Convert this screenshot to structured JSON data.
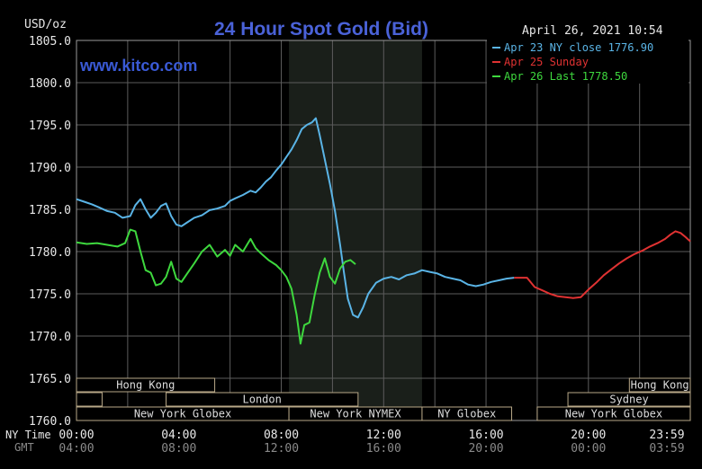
{
  "chart_data": {
    "type": "line",
    "title": "24 Hour Spot Gold (Bid)",
    "watermark": "www.kitco.com",
    "timestamp": "April 26, 2021 10:54",
    "ylabel": "USD/oz",
    "ylim": [
      1760,
      1805
    ],
    "y_ticks": [
      "1760.0",
      "1765.0",
      "1770.0",
      "1775.0",
      "1780.0",
      "1785.0",
      "1790.0",
      "1795.0",
      "1800.0",
      "1805.0"
    ],
    "x_row_labels": [
      "NY Time",
      "GMT"
    ],
    "x_ticks_ny": [
      "00:00",
      "04:00",
      "08:00",
      "12:00",
      "16:00",
      "20:00",
      "23:59"
    ],
    "x_ticks_gmt": [
      "04:00",
      "08:00",
      "12:00",
      "16:00",
      "20:00",
      "00:00",
      "03:59"
    ],
    "grid": true,
    "legend_position": "top-right",
    "highlight_band_hours": [
      8.3,
      13.5
    ],
    "series": [
      {
        "name": "Apr 23 NY close 1776.90",
        "color": "#5ab4e6",
        "points": [
          [
            0,
            1786.2
          ],
          [
            0.3,
            1785.9
          ],
          [
            0.6,
            1785.6
          ],
          [
            0.9,
            1785.2
          ],
          [
            1.2,
            1784.8
          ],
          [
            1.5,
            1784.6
          ],
          [
            1.8,
            1784.0
          ],
          [
            2.1,
            1784.2
          ],
          [
            2.3,
            1785.5
          ],
          [
            2.5,
            1786.2
          ],
          [
            2.7,
            1785.0
          ],
          [
            2.9,
            1784.0
          ],
          [
            3.1,
            1784.6
          ],
          [
            3.3,
            1785.4
          ],
          [
            3.5,
            1785.7
          ],
          [
            3.7,
            1784.2
          ],
          [
            3.9,
            1783.2
          ],
          [
            4.1,
            1783.0
          ],
          [
            4.3,
            1783.4
          ],
          [
            4.6,
            1784.0
          ],
          [
            4.9,
            1784.3
          ],
          [
            5.2,
            1784.9
          ],
          [
            5.5,
            1785.1
          ],
          [
            5.8,
            1785.4
          ],
          [
            6.0,
            1786.0
          ],
          [
            6.2,
            1786.3
          ],
          [
            6.5,
            1786.7
          ],
          [
            6.8,
            1787.2
          ],
          [
            7.0,
            1787.0
          ],
          [
            7.2,
            1787.6
          ],
          [
            7.4,
            1788.3
          ],
          [
            7.6,
            1788.8
          ],
          [
            7.8,
            1789.6
          ],
          [
            8.0,
            1790.3
          ],
          [
            8.2,
            1791.2
          ],
          [
            8.4,
            1792.1
          ],
          [
            8.6,
            1793.2
          ],
          [
            8.8,
            1794.5
          ],
          [
            9.0,
            1795.0
          ],
          [
            9.2,
            1795.3
          ],
          [
            9.35,
            1795.8
          ],
          [
            9.5,
            1793.8
          ],
          [
            9.7,
            1790.9
          ],
          [
            9.9,
            1788.0
          ],
          [
            10.1,
            1784.8
          ],
          [
            10.3,
            1780.8
          ],
          [
            10.45,
            1777.5
          ],
          [
            10.6,
            1774.4
          ],
          [
            10.8,
            1772.5
          ],
          [
            11.0,
            1772.2
          ],
          [
            11.2,
            1773.4
          ],
          [
            11.4,
            1775.0
          ],
          [
            11.7,
            1776.3
          ],
          [
            12.0,
            1776.8
          ],
          [
            12.3,
            1777.0
          ],
          [
            12.6,
            1776.7
          ],
          [
            12.9,
            1777.2
          ],
          [
            13.2,
            1777.4
          ],
          [
            13.5,
            1777.8
          ],
          [
            13.8,
            1777.6
          ],
          [
            14.1,
            1777.4
          ],
          [
            14.4,
            1777.0
          ],
          [
            14.7,
            1776.8
          ],
          [
            15.0,
            1776.6
          ],
          [
            15.3,
            1776.1
          ],
          [
            15.6,
            1775.9
          ],
          [
            15.9,
            1776.1
          ],
          [
            16.2,
            1776.4
          ],
          [
            16.5,
            1776.6
          ],
          [
            16.8,
            1776.8
          ],
          [
            17.1,
            1776.9
          ]
        ]
      },
      {
        "name": "Apr 25 Sunday",
        "color": "#e03232",
        "points": [
          [
            17.1,
            1776.9
          ],
          [
            17.6,
            1776.9
          ],
          [
            17.9,
            1775.8
          ],
          [
            18.2,
            1775.4
          ],
          [
            18.5,
            1775.0
          ],
          [
            18.8,
            1774.7
          ],
          [
            19.1,
            1774.6
          ],
          [
            19.4,
            1774.5
          ],
          [
            19.7,
            1774.6
          ],
          [
            20.0,
            1775.5
          ],
          [
            20.3,
            1776.3
          ],
          [
            20.6,
            1777.2
          ],
          [
            20.9,
            1777.9
          ],
          [
            21.2,
            1778.6
          ],
          [
            21.5,
            1779.2
          ],
          [
            21.8,
            1779.7
          ],
          [
            22.1,
            1780.1
          ],
          [
            22.4,
            1780.6
          ],
          [
            22.7,
            1781.0
          ],
          [
            23.0,
            1781.5
          ],
          [
            23.2,
            1782.0
          ],
          [
            23.4,
            1782.4
          ],
          [
            23.6,
            1782.2
          ],
          [
            23.8,
            1781.7
          ],
          [
            23.98,
            1781.2
          ]
        ]
      },
      {
        "name": "Apr 26 Last 1778.50",
        "color": "#3ed83e",
        "points": [
          [
            0,
            1781.1
          ],
          [
            0.4,
            1780.9
          ],
          [
            0.8,
            1781.0
          ],
          [
            1.2,
            1780.8
          ],
          [
            1.6,
            1780.6
          ],
          [
            1.9,
            1781.0
          ],
          [
            2.1,
            1782.6
          ],
          [
            2.3,
            1782.4
          ],
          [
            2.5,
            1780.0
          ],
          [
            2.7,
            1777.8
          ],
          [
            2.9,
            1777.5
          ],
          [
            3.1,
            1776.0
          ],
          [
            3.3,
            1776.2
          ],
          [
            3.5,
            1777.0
          ],
          [
            3.7,
            1778.8
          ],
          [
            3.9,
            1776.8
          ],
          [
            4.1,
            1776.4
          ],
          [
            4.3,
            1777.3
          ],
          [
            4.6,
            1778.6
          ],
          [
            4.9,
            1780.0
          ],
          [
            5.2,
            1780.8
          ],
          [
            5.5,
            1779.4
          ],
          [
            5.8,
            1780.2
          ],
          [
            6.0,
            1779.5
          ],
          [
            6.2,
            1780.8
          ],
          [
            6.5,
            1780.0
          ],
          [
            6.8,
            1781.5
          ],
          [
            7.0,
            1780.4
          ],
          [
            7.2,
            1779.8
          ],
          [
            7.5,
            1779.0
          ],
          [
            7.8,
            1778.4
          ],
          [
            8.0,
            1777.8
          ],
          [
            8.2,
            1777.0
          ],
          [
            8.4,
            1775.6
          ],
          [
            8.6,
            1772.5
          ],
          [
            8.75,
            1769.1
          ],
          [
            8.9,
            1771.3
          ],
          [
            9.1,
            1771.6
          ],
          [
            9.3,
            1774.8
          ],
          [
            9.5,
            1777.5
          ],
          [
            9.7,
            1779.2
          ],
          [
            9.9,
            1777.0
          ],
          [
            10.1,
            1776.2
          ],
          [
            10.3,
            1778.0
          ],
          [
            10.5,
            1778.8
          ],
          [
            10.7,
            1779.0
          ],
          [
            10.9,
            1778.5
          ]
        ]
      }
    ]
  },
  "sessions": {
    "row1": [
      {
        "label": "Hong Kong",
        "start": 0,
        "end": 5.4
      },
      {
        "label": "Hong Kong",
        "start": 21.6,
        "end": 23.98
      }
    ],
    "row2": [
      {
        "label": "",
        "start": 0,
        "end": 1.0
      },
      {
        "label": "London",
        "start": 3.5,
        "end": 11.0
      },
      {
        "label": "Sydney",
        "start": 19.2,
        "end": 23.98
      }
    ],
    "row3": [
      {
        "label": "New York Globex",
        "start": 0,
        "end": 8.3
      },
      {
        "label": "New York NYMEX",
        "start": 8.3,
        "end": 13.5
      },
      {
        "label": "NY Globex",
        "start": 13.5,
        "end": 17.0
      },
      {
        "label": "New York Globex",
        "start": 18.0,
        "end": 23.98
      }
    ]
  },
  "colors": {
    "title": "#4a62d8",
    "watermark": "#3a5ad6",
    "axis_text": "#e8e8e8",
    "gmt_text": "#8a8a8a",
    "grid": "#5c5c5c",
    "band": "#1a1f1a",
    "session_border": "#b8a888",
    "session_text": "#dcdcdc"
  }
}
